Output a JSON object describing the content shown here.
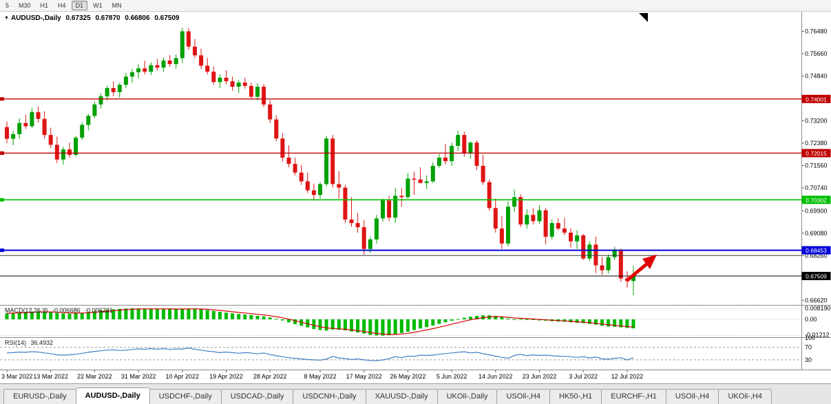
{
  "toolbar": {
    "timeframes": [
      {
        "label": "5",
        "active": false
      },
      {
        "label": "M30",
        "active": false
      },
      {
        "label": "H1",
        "active": false
      },
      {
        "label": "H4",
        "active": false
      },
      {
        "label": "D1",
        "active": true
      },
      {
        "label": "W1",
        "active": false
      },
      {
        "label": "MN",
        "active": false
      }
    ]
  },
  "header": {
    "dropdown_icon": "▼",
    "symbol": "AUDUSD-,Daily",
    "open": "0.67325",
    "high": "0.67870",
    "low": "0.66806",
    "close": "0.67509"
  },
  "price_axis": {
    "ticks": [
      "0.76480",
      "0.75660",
      "0.74840",
      "0.73200",
      "0.72380",
      "0.71560",
      "0.70740",
      "0.69900",
      "0.69080",
      "0.68260",
      "0.66620"
    ]
  },
  "indicators": {
    "macd": {
      "name": "MACD(12,26,9)",
      "value_main": "-0.006686",
      "value_signal": "-0.006231",
      "axis": [
        "0.008190",
        "0.00",
        "-0.01212"
      ]
    },
    "rsi": {
      "name": "RSI(14)",
      "value": "36.4932",
      "axis": [
        "100",
        "70",
        "30"
      ]
    }
  },
  "tabs": [
    {
      "label": "EURUSD-,Daily",
      "active": false
    },
    {
      "label": "AUDUSD-,Daily",
      "active": true
    },
    {
      "label": "USDCHF-,Daily",
      "active": false
    },
    {
      "label": "USDCAD-,Daily",
      "active": false
    },
    {
      "label": "USDCNH-,Daily",
      "active": false
    },
    {
      "label": "XAUUSD-,Daily",
      "active": false
    },
    {
      "label": "UKOil-,Daily",
      "active": false
    },
    {
      "label": "USOil-,H4",
      "active": false
    },
    {
      "label": "HK50-,H1",
      "active": false
    },
    {
      "label": "EURCHF-,H1",
      "active": false
    },
    {
      "label": "USOil-,H4",
      "active": false
    },
    {
      "label": "UKOil-,H4",
      "active": false
    }
  ],
  "colors": {
    "bull": "#00A000",
    "bear": "#DF1414",
    "macd_bars": "#00BB00",
    "signal_line": "#D40000",
    "rsi_line": "#3F7FC4",
    "resistance": "#C00000",
    "support_green": "#00C000",
    "support_blue": "#0000D8",
    "price_line": "#000000",
    "arrow": "#E00000"
  },
  "annotations": {
    "trend_arrow": {
      "direction": "up",
      "color": "#E00000"
    },
    "shift_marker_color": "#000000"
  },
  "chart_data": {
    "type": "candlestick",
    "title": "AUDUSD-,Daily",
    "symbol": "AUDUSD",
    "timeframe": "Daily",
    "ohlc_display": {
      "open": 0.67325,
      "high": 0.6787,
      "low": 0.66806,
      "close": 0.67509
    },
    "ylim": [
      0.6645,
      0.772
    ],
    "x_labels": [
      "3 Mar 2022",
      "13 Mar 2022",
      "22 Mar 2022",
      "31 Mar 2022",
      "10 Apr 2022",
      "19 Apr 2022",
      "28 Apr 2022",
      "8 May 2022",
      "17 May 2022",
      "26 May 2022",
      "5 Jun 2022",
      "14 Jun 2022",
      "23 Jun 2022",
      "3 Jul 2022",
      "12 Jul 2022"
    ],
    "levels": [
      {
        "price": 0.74001,
        "label": "0.74001",
        "color": "#C00000",
        "badge": true,
        "width": 1.4
      },
      {
        "price": 0.72015,
        "label": "0.72015",
        "color": "#C00000",
        "badge": true,
        "width": 1.4
      },
      {
        "price": 0.70302,
        "label": "0.70302",
        "color": "#00C000",
        "badge": true,
        "width": 1.6
      },
      {
        "price": 0.68453,
        "label": "0.68453",
        "color": "#0000D8",
        "badge": true,
        "width": 2
      },
      {
        "price": 0.6826,
        "label": "",
        "color": "#3a3a3a",
        "badge": false,
        "width": 1
      },
      {
        "price": 0.67509,
        "label": "0.67509",
        "color": "#000000",
        "badge": true,
        "width": 1
      }
    ],
    "candles": [
      [
        0.7297,
        0.7317,
        0.7238,
        0.7254
      ],
      [
        0.7254,
        0.7283,
        0.723,
        0.7271
      ],
      [
        0.7271,
        0.7329,
        0.7255,
        0.7312
      ],
      [
        0.7312,
        0.7343,
        0.729,
        0.73
      ],
      [
        0.73,
        0.7368,
        0.7294,
        0.7352
      ],
      [
        0.7352,
        0.7372,
        0.7313,
        0.7327
      ],
      [
        0.7327,
        0.7355,
        0.7255,
        0.7268
      ],
      [
        0.7268,
        0.7295,
        0.722,
        0.7232
      ],
      [
        0.7232,
        0.7262,
        0.7165,
        0.7178
      ],
      [
        0.7178,
        0.7225,
        0.716,
        0.7215
      ],
      [
        0.7215,
        0.724,
        0.7185,
        0.7195
      ],
      [
        0.7195,
        0.7265,
        0.719,
        0.7258
      ],
      [
        0.7258,
        0.7315,
        0.725,
        0.7305
      ],
      [
        0.7305,
        0.7345,
        0.7285,
        0.7338
      ],
      [
        0.7338,
        0.739,
        0.733,
        0.738
      ],
      [
        0.738,
        0.742,
        0.7365,
        0.741
      ],
      [
        0.741,
        0.7448,
        0.7395,
        0.744
      ],
      [
        0.744,
        0.7465,
        0.741,
        0.7425
      ],
      [
        0.7425,
        0.746,
        0.7405,
        0.7452
      ],
      [
        0.7452,
        0.7495,
        0.744,
        0.7482
      ],
      [
        0.7482,
        0.751,
        0.746,
        0.7498
      ],
      [
        0.7498,
        0.7527,
        0.7475,
        0.7512
      ],
      [
        0.7512,
        0.754,
        0.749,
        0.75
      ],
      [
        0.75,
        0.7535,
        0.7488,
        0.7524
      ],
      [
        0.7524,
        0.7547,
        0.7505,
        0.7515
      ],
      [
        0.7515,
        0.7552,
        0.75,
        0.7541
      ],
      [
        0.7541,
        0.7561,
        0.7518,
        0.7528
      ],
      [
        0.7528,
        0.7563,
        0.7512,
        0.755
      ],
      [
        0.755,
        0.7661,
        0.7532,
        0.7648
      ],
      [
        0.7648,
        0.766,
        0.758,
        0.7592
      ],
      [
        0.7592,
        0.762,
        0.755,
        0.756
      ],
      [
        0.756,
        0.7585,
        0.751,
        0.7522
      ],
      [
        0.7522,
        0.755,
        0.749,
        0.75
      ],
      [
        0.75,
        0.7519,
        0.7452,
        0.7462
      ],
      [
        0.7462,
        0.749,
        0.744,
        0.7478
      ],
      [
        0.7478,
        0.7505,
        0.7455,
        0.7465
      ],
      [
        0.7465,
        0.7482,
        0.743,
        0.7445
      ],
      [
        0.7445,
        0.747,
        0.7422,
        0.746
      ],
      [
        0.746,
        0.7478,
        0.7438,
        0.7448
      ],
      [
        0.7448,
        0.746,
        0.7398,
        0.7408
      ],
      [
        0.7408,
        0.7458,
        0.7395,
        0.7445
      ],
      [
        0.7445,
        0.7455,
        0.737,
        0.738
      ],
      [
        0.738,
        0.7395,
        0.7312,
        0.7325
      ],
      [
        0.7325,
        0.734,
        0.7245,
        0.7255
      ],
      [
        0.7255,
        0.7275,
        0.717,
        0.7185
      ],
      [
        0.7185,
        0.723,
        0.715,
        0.7162
      ],
      [
        0.7162,
        0.7185,
        0.712,
        0.713
      ],
      [
        0.713,
        0.7158,
        0.7085,
        0.7098
      ],
      [
        0.7098,
        0.713,
        0.7055,
        0.7065
      ],
      [
        0.7065,
        0.709,
        0.7028,
        0.7048
      ],
      [
        0.7048,
        0.7095,
        0.7035,
        0.7088
      ],
      [
        0.7088,
        0.7265,
        0.708,
        0.7255
      ],
      [
        0.7255,
        0.7268,
        0.7075,
        0.7088
      ],
      [
        0.7088,
        0.7135,
        0.7035,
        0.7075
      ],
      [
        0.7075,
        0.7085,
        0.6945,
        0.6958
      ],
      [
        0.6958,
        0.704,
        0.6932,
        0.6945
      ],
      [
        0.6945,
        0.6982,
        0.691,
        0.693
      ],
      [
        0.693,
        0.6955,
        0.6829,
        0.685
      ],
      [
        0.685,
        0.6895,
        0.6835,
        0.6885
      ],
      [
        0.6885,
        0.6975,
        0.687,
        0.6962
      ],
      [
        0.6962,
        0.7035,
        0.695,
        0.7028
      ],
      [
        0.7028,
        0.7045,
        0.6952,
        0.6965
      ],
      [
        0.6965,
        0.7075,
        0.6945,
        0.7045
      ],
      [
        0.7045,
        0.7073,
        0.7005,
        0.704
      ],
      [
        0.704,
        0.7128,
        0.7035,
        0.7108
      ],
      [
        0.7108,
        0.7133,
        0.7048,
        0.7105
      ],
      [
        0.7105,
        0.715,
        0.709,
        0.7092
      ],
      [
        0.7092,
        0.712,
        0.707,
        0.7098
      ],
      [
        0.7098,
        0.7168,
        0.7092,
        0.7155
      ],
      [
        0.7155,
        0.7198,
        0.7148,
        0.7185
      ],
      [
        0.7185,
        0.7235,
        0.716,
        0.7172
      ],
      [
        0.7172,
        0.724,
        0.7155,
        0.7228
      ],
      [
        0.7228,
        0.7283,
        0.721,
        0.7268
      ],
      [
        0.7268,
        0.728,
        0.7188,
        0.72
      ],
      [
        0.72,
        0.7245,
        0.718,
        0.724
      ],
      [
        0.724,
        0.7248,
        0.714,
        0.7155
      ],
      [
        0.7155,
        0.7195,
        0.7085,
        0.7095
      ],
      [
        0.7095,
        0.7105,
        0.699,
        0.7
      ],
      [
        0.7,
        0.7035,
        0.691,
        0.6925
      ],
      [
        0.6925,
        0.697,
        0.685,
        0.687
      ],
      [
        0.687,
        0.7025,
        0.686,
        0.7005
      ],
      [
        0.7005,
        0.7068,
        0.6985,
        0.704
      ],
      [
        0.704,
        0.705,
        0.693,
        0.694
      ],
      [
        0.694,
        0.6995,
        0.6925,
        0.6975
      ],
      [
        0.6975,
        0.7,
        0.694,
        0.6952
      ],
      [
        0.6952,
        0.701,
        0.6942,
        0.6992
      ],
      [
        0.6992,
        0.7,
        0.6867,
        0.6895
      ],
      [
        0.6895,
        0.6958,
        0.6885,
        0.6945
      ],
      [
        0.6945,
        0.6962,
        0.6918,
        0.6925
      ],
      [
        0.6925,
        0.6965,
        0.69,
        0.691
      ],
      [
        0.691,
        0.6925,
        0.6855,
        0.6878
      ],
      [
        0.6878,
        0.6918,
        0.685,
        0.69
      ],
      [
        0.69,
        0.6905,
        0.681,
        0.6815
      ],
      [
        0.6815,
        0.6878,
        0.6805,
        0.6866
      ],
      [
        0.6866,
        0.6895,
        0.6762,
        0.679
      ],
      [
        0.679,
        0.682,
        0.6755,
        0.6772
      ],
      [
        0.6772,
        0.683,
        0.676,
        0.682
      ],
      [
        0.682,
        0.6858,
        0.681,
        0.6848
      ],
      [
        0.6848,
        0.6852,
        0.673,
        0.6742
      ],
      [
        0.6742,
        0.6768,
        0.6708,
        0.6733
      ],
      [
        0.67325,
        0.6787,
        0.66806,
        0.67509
      ]
    ],
    "indicators": {
      "macd": {
        "params": [
          12,
          26,
          9
        ],
        "main_display": -0.006686,
        "signal_display": -0.006231,
        "axis_labels": [
          0.00819,
          0.0,
          -0.01212
        ],
        "histogram": [
          0.0045,
          0.0048,
          0.0052,
          0.0055,
          0.0058,
          0.006,
          0.0058,
          0.0054,
          0.0048,
          0.0044,
          0.0042,
          0.0044,
          0.0048,
          0.0054,
          0.006,
          0.0066,
          0.0071,
          0.0075,
          0.0078,
          0.008,
          0.0082,
          0.0081,
          0.008,
          0.0079,
          0.0078,
          0.0077,
          0.0076,
          0.0076,
          0.0077,
          0.008,
          0.0078,
          0.0074,
          0.0069,
          0.0063,
          0.0056,
          0.005,
          0.0045,
          0.004,
          0.0036,
          0.0032,
          0.0026,
          0.0022,
          0.0014,
          0.0004,
          -0.0008,
          -0.0022,
          -0.0036,
          -0.0048,
          -0.006,
          -0.0072,
          -0.008,
          -0.0084,
          -0.0076,
          -0.0078,
          -0.0082,
          -0.009,
          -0.0098,
          -0.0106,
          -0.0116,
          -0.012,
          -0.01212,
          -0.0118,
          -0.0112,
          -0.0102,
          -0.0092,
          -0.008,
          -0.0068,
          -0.0058,
          -0.0046,
          -0.0034,
          -0.0022,
          -0.001,
          0.0002,
          0.0012,
          0.002,
          0.0026,
          0.003,
          0.003,
          0.0026,
          0.0018,
          0.0006,
          -0.0002,
          0.0002,
          0.0,
          -0.0004,
          -0.0008,
          -0.001,
          -0.0014,
          -0.0016,
          -0.0018,
          -0.0022,
          -0.0026,
          -0.0028,
          -0.0034,
          -0.004,
          -0.0048,
          -0.0054,
          -0.0056,
          -0.006,
          -0.0064,
          -0.00669
        ]
      },
      "rsi": {
        "period": 14,
        "current": 36.4932,
        "levels": [
          70,
          30
        ],
        "ylim": [
          0,
          100
        ],
        "values": [
          52,
          53,
          55,
          54,
          56,
          55,
          52,
          50,
          46,
          45,
          46,
          48,
          51,
          54,
          57,
          59,
          61,
          62,
          60,
          61,
          63,
          65,
          64,
          66,
          64,
          66,
          63,
          65,
          64,
          68,
          64,
          61,
          58,
          56,
          53,
          55,
          53,
          51,
          53,
          52,
          49,
          52,
          47,
          43,
          40,
          37,
          35,
          33,
          31,
          30,
          29,
          32,
          41,
          36,
          34,
          31,
          33,
          30,
          28,
          27,
          30,
          34,
          40,
          37,
          42,
          41,
          45,
          44,
          45,
          48,
          50,
          52,
          54,
          56,
          52,
          54,
          50,
          46,
          42,
          38,
          35,
          44,
          48,
          43,
          46,
          44,
          45,
          43,
          42,
          41,
          40,
          38,
          40,
          36,
          39,
          33,
          32,
          35,
          37,
          30,
          36.49
        ]
      }
    }
  }
}
